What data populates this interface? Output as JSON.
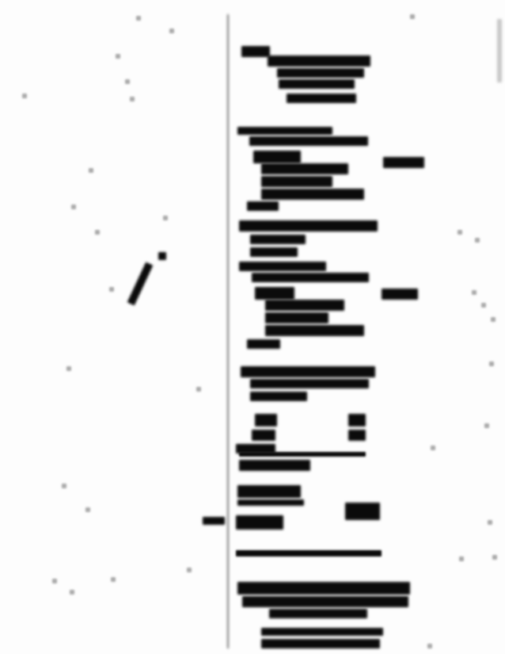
{
  "document": {
    "type": "scanned page (illegible, heavily blurred)",
    "text_blocks": []
  },
  "colors": {
    "ink": "#0b0b0b",
    "paper": "#fdfdfd",
    "noise": "#a9a9a9"
  }
}
